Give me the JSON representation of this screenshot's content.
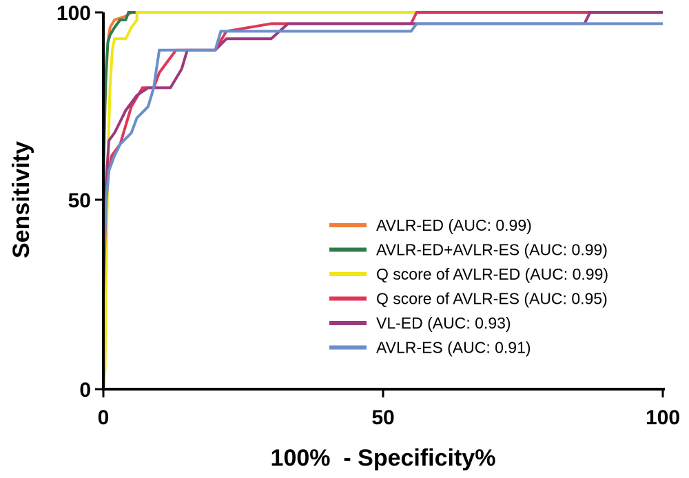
{
  "chart_data": {
    "type": "line",
    "title": "",
    "xlabel": "100%  - Specificity%",
    "ylabel": "Sensitivity",
    "xlim": [
      0,
      100
    ],
    "ylim": [
      0,
      100
    ],
    "xticks": [
      "0",
      "50",
      "100"
    ],
    "yticks": [
      "0",
      "50",
      "100"
    ],
    "grid": false,
    "legend_position": "lower-right",
    "series": [
      {
        "name": "AVLR-ED (AUC: 0.99)",
        "color": "#f07f3c",
        "points": [
          [
            0,
            0
          ],
          [
            0,
            60
          ],
          [
            0.4,
            80
          ],
          [
            0.8,
            92
          ],
          [
            1.2,
            96
          ],
          [
            2,
            98
          ],
          [
            4,
            99
          ],
          [
            5,
            100
          ],
          [
            100,
            100
          ]
        ]
      },
      {
        "name": "AVLR-ED+AVLR-ES (AUC: 0.99)",
        "color": "#2f7d4a",
        "points": [
          [
            0,
            0
          ],
          [
            0,
            55
          ],
          [
            0.3,
            75
          ],
          [
            0.5,
            85
          ],
          [
            0.8,
            92
          ],
          [
            1.2,
            94
          ],
          [
            2,
            96
          ],
          [
            3,
            98
          ],
          [
            4,
            98
          ],
          [
            4.5,
            100
          ],
          [
            100,
            100
          ]
        ]
      },
      {
        "name": "Q score of AVLR-ED  (AUC: 0.99)",
        "color": "#f0e617",
        "points": [
          [
            0,
            0
          ],
          [
            0.3,
            5
          ],
          [
            0.5,
            30
          ],
          [
            0.8,
            60
          ],
          [
            1.2,
            80
          ],
          [
            1.6,
            90
          ],
          [
            2,
            93
          ],
          [
            4,
            93
          ],
          [
            5,
            96
          ],
          [
            6,
            98
          ],
          [
            6,
            100
          ],
          [
            100,
            100
          ]
        ]
      },
      {
        "name": "Q score of AVLR-ES (AUC: 0.95)",
        "color": "#e0375a",
        "points": [
          [
            0,
            0
          ],
          [
            0,
            25
          ],
          [
            0.5,
            50
          ],
          [
            1,
            58
          ],
          [
            1.5,
            62
          ],
          [
            3,
            65
          ],
          [
            4,
            70
          ],
          [
            5,
            75
          ],
          [
            7,
            80
          ],
          [
            9,
            80
          ],
          [
            10,
            84
          ],
          [
            12,
            88
          ],
          [
            13,
            90
          ],
          [
            20,
            90
          ],
          [
            22,
            95
          ],
          [
            30,
            97
          ],
          [
            55,
            97
          ],
          [
            56,
            100
          ],
          [
            100,
            100
          ]
        ]
      },
      {
        "name": "VL-ED (AUC: 0.93)",
        "color": "#9b3a7c",
        "points": [
          [
            0,
            0
          ],
          [
            0,
            35
          ],
          [
            0.5,
            55
          ],
          [
            1,
            66
          ],
          [
            2,
            68
          ],
          [
            3,
            71
          ],
          [
            4,
            74
          ],
          [
            6,
            78
          ],
          [
            8,
            80
          ],
          [
            12,
            80
          ],
          [
            14,
            85
          ],
          [
            15,
            90
          ],
          [
            20,
            90
          ],
          [
            22,
            93
          ],
          [
            30,
            93
          ],
          [
            33,
            97
          ],
          [
            86,
            97
          ],
          [
            87,
            100
          ],
          [
            100,
            100
          ]
        ]
      },
      {
        "name": "AVLR-ES (AUC: 0.91)",
        "color": "#6b8fc9",
        "points": [
          [
            0,
            0
          ],
          [
            0,
            30
          ],
          [
            0.5,
            50
          ],
          [
            1,
            58
          ],
          [
            2,
            62
          ],
          [
            3,
            65
          ],
          [
            5,
            68
          ],
          [
            6,
            72
          ],
          [
            8,
            75
          ],
          [
            9,
            80
          ],
          [
            9.5,
            85
          ],
          [
            10,
            90
          ],
          [
            20,
            90
          ],
          [
            21,
            95
          ],
          [
            55,
            95
          ],
          [
            56,
            97
          ],
          [
            100,
            97
          ]
        ]
      }
    ]
  }
}
